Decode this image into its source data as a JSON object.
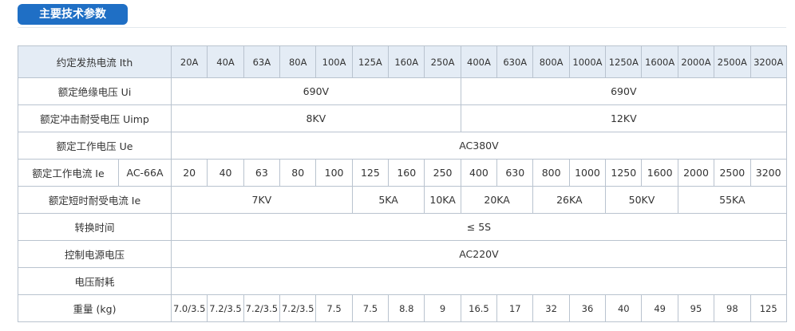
{
  "header": {
    "title": "主要技术参数"
  },
  "table": {
    "rows": [
      {
        "label": "约定发热电流 Ith",
        "cells": [
          "20A",
          "40A",
          "63A",
          "80A",
          "100A",
          "125A",
          "160A",
          "250A",
          "400A",
          "630A",
          "800A",
          "1000A",
          "1250A",
          "1600A",
          "2000A",
          "2500A",
          "3200A"
        ]
      },
      {
        "label": "额定绝缘电压 Ui",
        "cells": [
          "690V",
          "690V"
        ]
      },
      {
        "label": "额定冲击耐受电压 Uimp",
        "cells": [
          "8KV",
          "12KV"
        ]
      },
      {
        "label": "额定工作电压 Ue",
        "cells": [
          "AC380V"
        ]
      },
      {
        "label": "额定工作电流 Ie",
        "sublabel": "AC-66A",
        "cells": [
          "20",
          "40",
          "63",
          "80",
          "100",
          "125",
          "160",
          "250",
          "400",
          "630",
          "800",
          "1000",
          "1250",
          "1600",
          "2000",
          "2500",
          "3200"
        ]
      },
      {
        "label": "额定短时耐受电流 Ie",
        "cells": [
          "7KV",
          "5KA",
          "10KA",
          "20KA",
          "26KA",
          "50KV",
          "55KA"
        ]
      },
      {
        "label": "转换时间",
        "cells": [
          "≤ 5S"
        ]
      },
      {
        "label": "控制电源电压",
        "cells": [
          "AC220V"
        ]
      },
      {
        "label": "电压耐耗"
      },
      {
        "label": "重量 (kg)",
        "cells": [
          "7.0/3.5",
          "7.2/3.5",
          "7.2/3.5",
          "7.2/3.5",
          "7.5",
          "7.5",
          "8.8",
          "9",
          "16.5",
          "17",
          "32",
          "36",
          "40",
          "49",
          "95",
          "98",
          "125"
        ]
      }
    ]
  }
}
